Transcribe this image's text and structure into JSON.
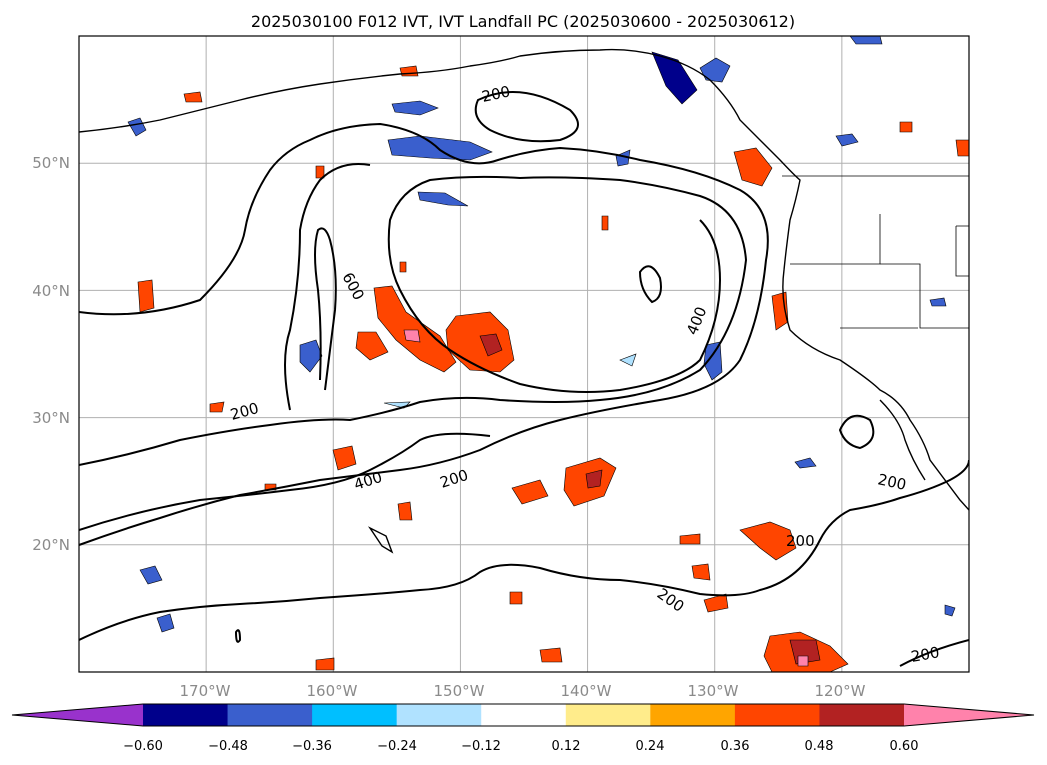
{
  "title": "2025030100 F012 IVT, IVT Landfall PC (2025030600 - 2025030612)",
  "map": {
    "lat_labels": [
      "50°N",
      "40°N",
      "30°N",
      "20°N"
    ],
    "lon_labels": [
      "170°W",
      "160°W",
      "150°W",
      "140°W",
      "130°W",
      "120°W"
    ],
    "lat_range": [
      10,
      60
    ],
    "lon_range": [
      -180,
      -110
    ],
    "grid": true,
    "contour_levels": [
      200,
      400,
      600
    ],
    "contour_labels": [
      "200",
      "200",
      "200",
      "200",
      "200",
      "200",
      "200",
      "400",
      "400",
      "600"
    ]
  },
  "colorbar": {
    "ticks": [
      "−0.60",
      "−0.48",
      "−0.36",
      "−0.24",
      "−0.12",
      "0.12",
      "0.24",
      "0.36",
      "0.48",
      "0.60"
    ],
    "colors": [
      "#9932cc",
      "#00008b",
      "#3a5fcd",
      "#00bfff",
      "#b0e2ff",
      "#ffffff",
      "#ffec8b",
      "#ffa500",
      "#ff4500",
      "#b22222",
      "#ff82ab"
    ],
    "extend": "both"
  },
  "chart_data": {
    "type": "heatmap",
    "title": "2025030100 F012 IVT, IVT Landfall PC (2025030600 - 2025030612)",
    "color_levels": [
      -0.6,
      -0.48,
      -0.36,
      -0.24,
      -0.12,
      0.12,
      0.24,
      0.36,
      0.48,
      0.6
    ],
    "ivt_contours": [
      200,
      400,
      600
    ],
    "xlim": [
      -180,
      -110
    ],
    "ylim": [
      10,
      60
    ],
    "tick_labels_x": [
      "170°W",
      "160°W",
      "150°W",
      "140°W",
      "130°W",
      "120°W"
    ],
    "tick_labels_y": [
      "50°N",
      "40°N",
      "30°N",
      "20°N"
    ]
  }
}
